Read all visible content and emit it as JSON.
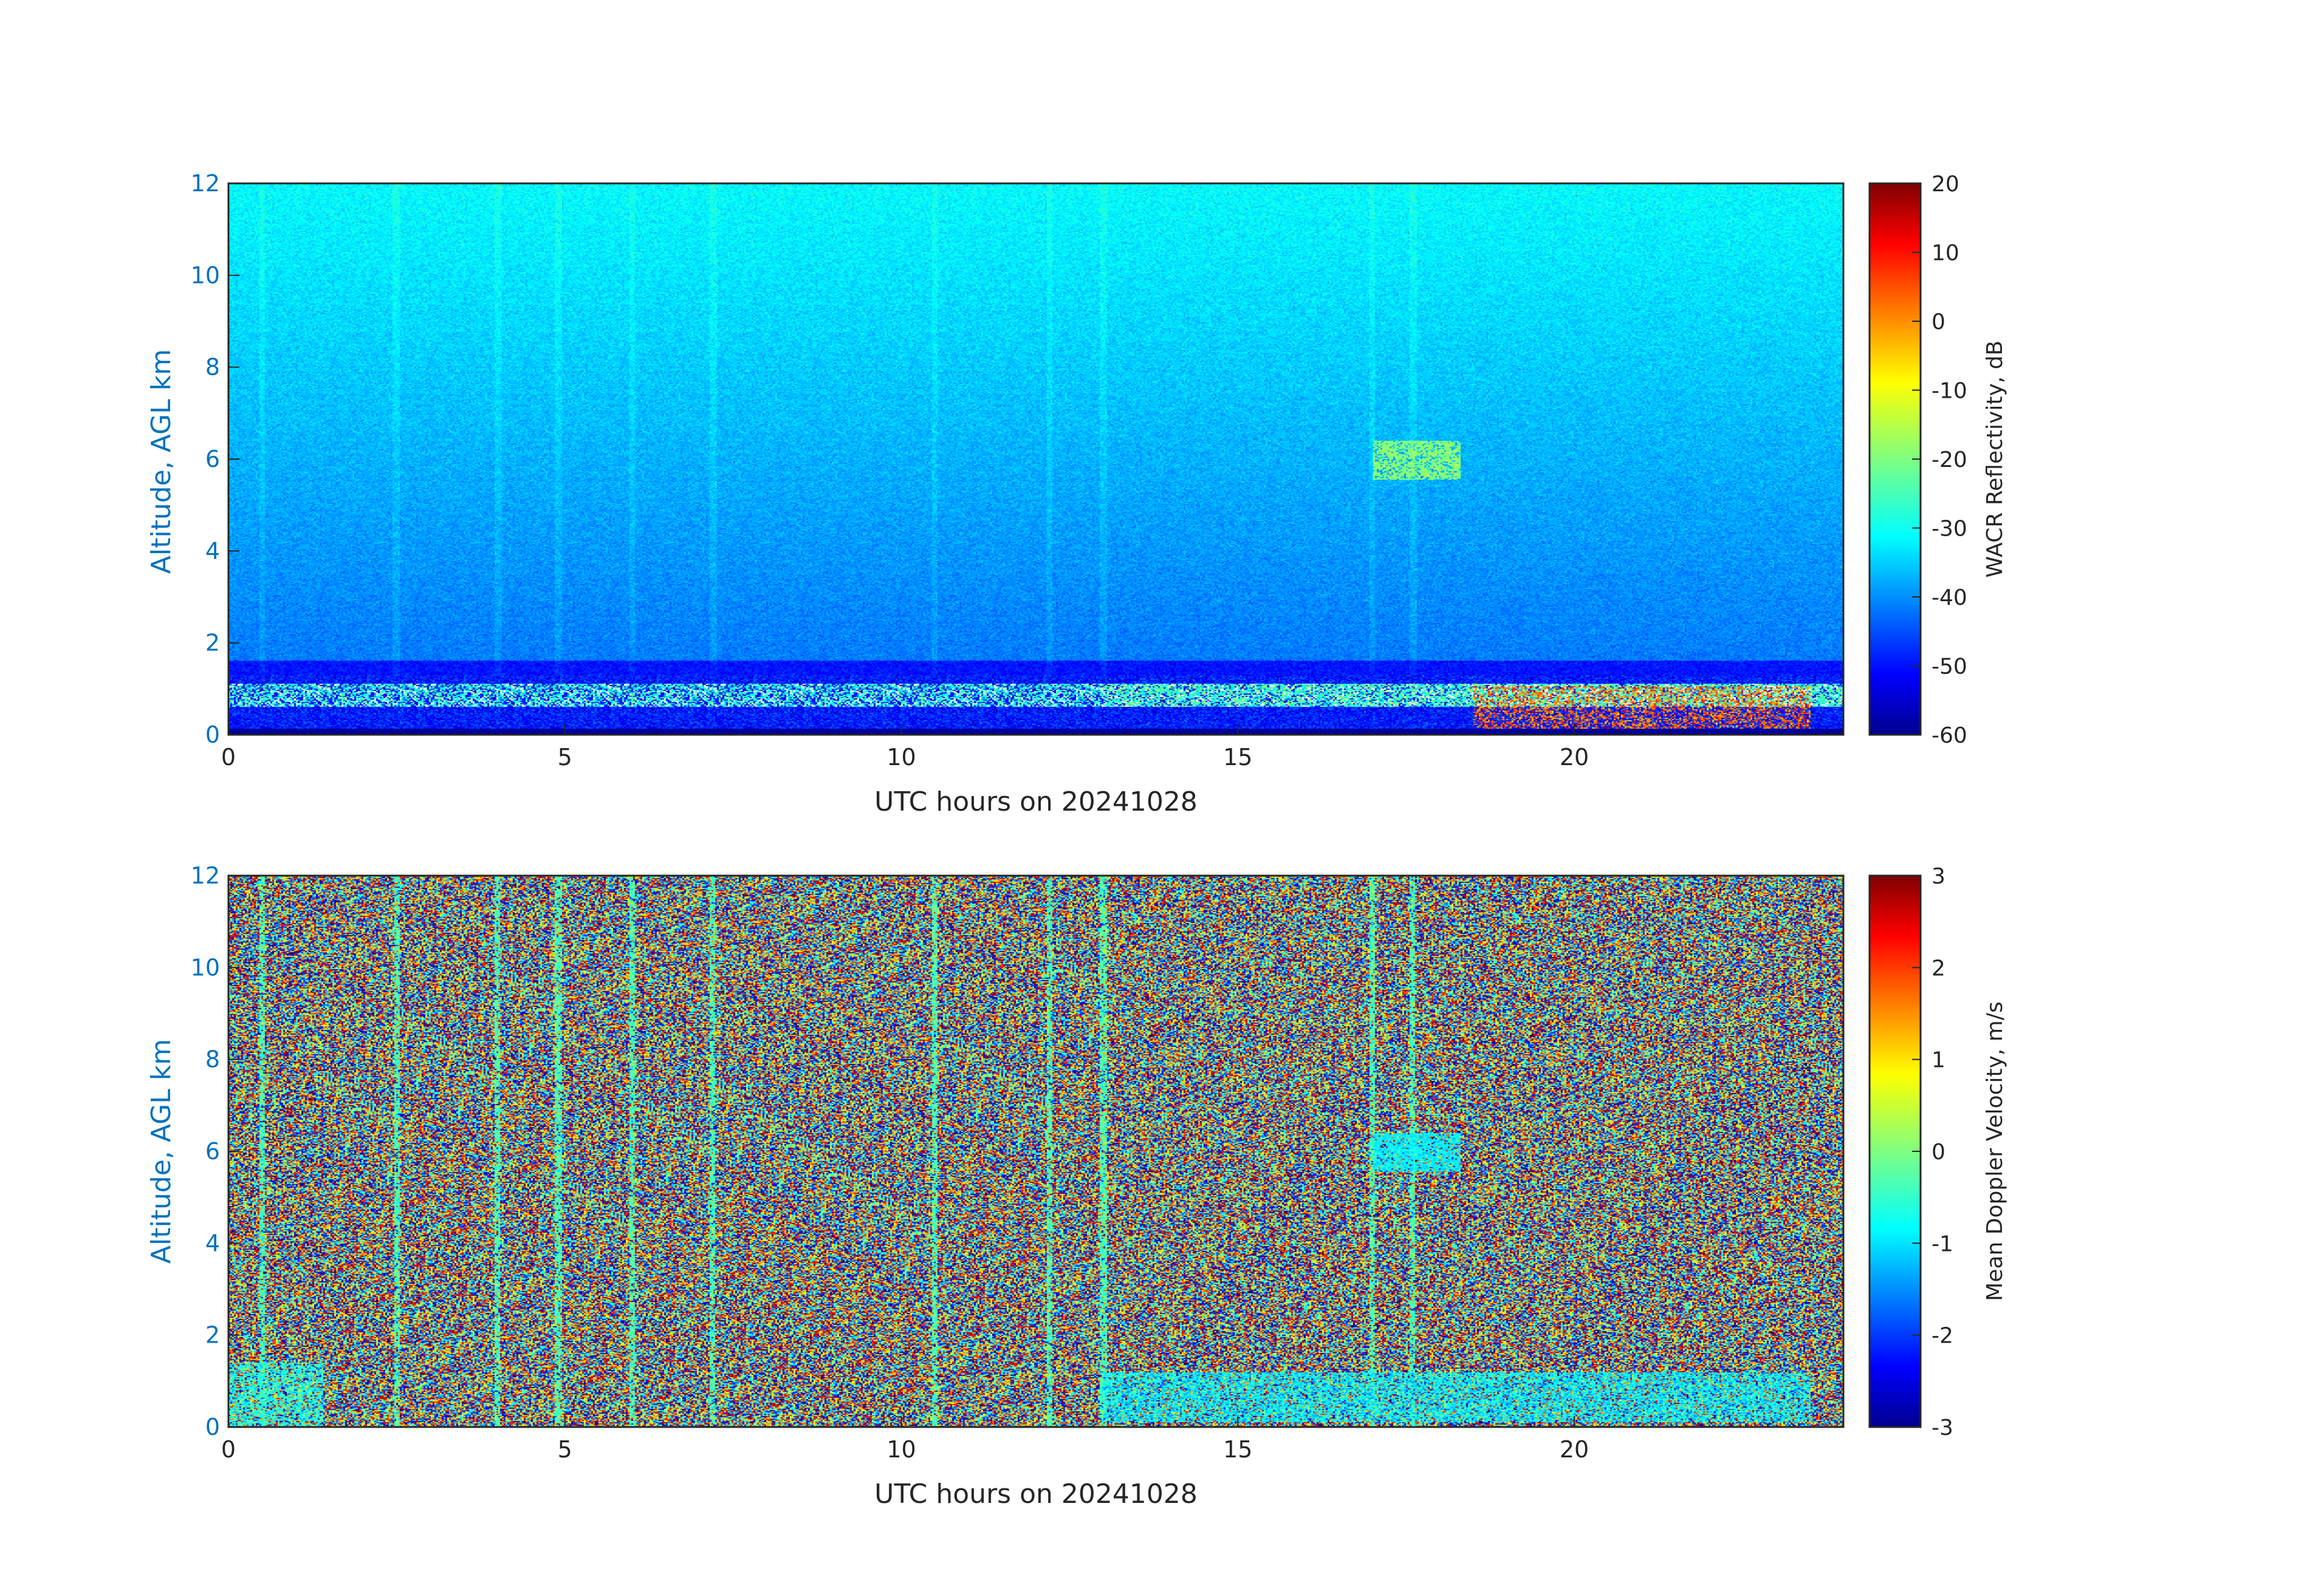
{
  "chart_data": [
    {
      "type": "heatmap",
      "quantity": "reflectivity",
      "xlabel": "UTC hours on 20241028",
      "ylabel": "Altitude, AGL km",
      "xlim": [
        0,
        24
      ],
      "ylim": [
        0,
        12
      ],
      "xticks": [
        0,
        5,
        10,
        15,
        20
      ],
      "yticks": [
        0,
        2,
        4,
        6,
        8,
        10,
        12
      ],
      "colorbar": {
        "label": "WACR Reflectivity, dB",
        "range": [
          -60,
          20
        ],
        "ticks": [
          20,
          10,
          0,
          -10,
          -20,
          -30,
          -40,
          -50,
          -60
        ],
        "colormap": "jet"
      },
      "features": [
        {
          "kind": "background noise",
          "altitude_km": [
            1.5,
            12
          ],
          "value_db": [
            -42,
            -30
          ],
          "gradient": "stronger with height"
        },
        {
          "kind": "low cloud/clutter band",
          "time_h": [
            0,
            24
          ],
          "altitude_km": [
            0,
            1.3
          ],
          "value_db": [
            -30,
            10
          ]
        },
        {
          "kind": "elevated cloud",
          "time_h": [
            17.0,
            18.3
          ],
          "altitude_km": [
            5.5,
            6.4
          ],
          "value_db": [
            -22,
            -15
          ]
        },
        {
          "kind": "precipitation core",
          "time_h": [
            18.5,
            23.5
          ],
          "altitude_km": [
            0.1,
            1.1
          ],
          "value_db": [
            -5,
            15
          ]
        }
      ]
    },
    {
      "type": "heatmap",
      "quantity": "mean doppler velocity",
      "xlabel": "UTC hours on 20241028",
      "ylabel": "Altitude, AGL km",
      "xlim": [
        0,
        24
      ],
      "ylim": [
        0,
        12
      ],
      "xticks": [
        0,
        5,
        10,
        15,
        20
      ],
      "yticks": [
        0,
        2,
        4,
        6,
        8,
        10,
        12
      ],
      "colorbar": {
        "label": "Mean Doppler Velocity, m/s",
        "range": [
          -3,
          3
        ],
        "ticks": [
          3,
          2,
          1,
          0,
          -1,
          -2,
          -3
        ],
        "colormap": "jet"
      },
      "features": [
        {
          "kind": "random noise",
          "altitude_km": [
            0,
            12
          ],
          "value_ms": [
            -3,
            3
          ]
        },
        {
          "kind": "vertical streaks",
          "time_h": [
            0.5,
            2.5,
            4.0,
            4.9,
            6.0,
            7.2,
            10.5,
            12.2,
            13.0,
            17.0,
            17.6
          ],
          "value_ms": [
            -1,
            0.5
          ]
        },
        {
          "kind": "elevated cloud",
          "time_h": [
            17.0,
            18.3
          ],
          "altitude_km": [
            5.5,
            6.4
          ],
          "value_ms": [
            -1.2,
            -0.3
          ]
        },
        {
          "kind": "low cloud band",
          "time_h": [
            13.0,
            23.5
          ],
          "altitude_km": [
            0.1,
            1.2
          ],
          "value_ms": [
            -1.5,
            0
          ]
        }
      ]
    }
  ],
  "colors": {
    "axis_tick_y": "#0072bd",
    "axis_tick_x": "#262626",
    "frame": "#262626"
  }
}
